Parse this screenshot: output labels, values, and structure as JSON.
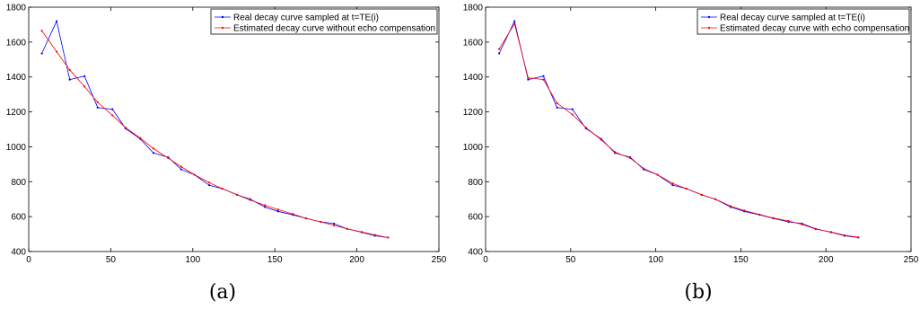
{
  "chart_data": [
    {
      "type": "line",
      "caption": "(a)",
      "xlim": [
        0,
        250
      ],
      "ylim": [
        400,
        1800
      ],
      "xticks": [
        0,
        50,
        100,
        150,
        200,
        250
      ],
      "yticks": [
        400,
        600,
        800,
        1000,
        1200,
        1400,
        1600,
        1800
      ],
      "grid": false,
      "legend_position": "top-right",
      "series": [
        {
          "name": "Real decay curve sampled at t=TE(i)",
          "color": "#0000ff",
          "x": [
            8,
            17,
            25,
            34,
            42,
            51,
            59,
            68,
            76,
            85,
            93,
            101,
            110,
            118,
            127,
            135,
            144,
            152,
            161,
            169,
            178,
            186,
            194,
            203,
            211,
            219
          ],
          "y": [
            1535,
            1720,
            1385,
            1405,
            1225,
            1215,
            1105,
            1045,
            965,
            940,
            870,
            840,
            780,
            760,
            725,
            700,
            655,
            630,
            610,
            590,
            570,
            560,
            530,
            510,
            490,
            480
          ]
        },
        {
          "name": "Estimated decay curve without echo compensation",
          "color": "#ff0000",
          "x": [
            8,
            17,
            25,
            34,
            42,
            51,
            59,
            68,
            76,
            85,
            93,
            101,
            110,
            118,
            127,
            135,
            144,
            152,
            161,
            169,
            178,
            186,
            194,
            203,
            211,
            219
          ],
          "y": [
            1665,
            1545,
            1440,
            1345,
            1255,
            1180,
            1110,
            1050,
            990,
            935,
            885,
            840,
            795,
            760,
            725,
            695,
            665,
            640,
            615,
            590,
            570,
            550,
            530,
            512,
            495,
            480
          ]
        }
      ]
    },
    {
      "type": "line",
      "caption": "(b)",
      "xlim": [
        0,
        250
      ],
      "ylim": [
        400,
        1800
      ],
      "xticks": [
        0,
        50,
        100,
        150,
        200,
        250
      ],
      "yticks": [
        400,
        600,
        800,
        1000,
        1200,
        1400,
        1600,
        1800
      ],
      "grid": false,
      "legend_position": "top-right",
      "series": [
        {
          "name": "Real decay curve sampled at t=TE(i)",
          "color": "#0000ff",
          "x": [
            8,
            17,
            25,
            34,
            42,
            51,
            59,
            68,
            76,
            85,
            93,
            101,
            110,
            118,
            127,
            135,
            144,
            152,
            161,
            169,
            178,
            186,
            194,
            203,
            211,
            219
          ],
          "y": [
            1535,
            1720,
            1385,
            1405,
            1225,
            1215,
            1105,
            1045,
            965,
            940,
            870,
            840,
            780,
            760,
            725,
            700,
            655,
            630,
            610,
            590,
            570,
            560,
            530,
            510,
            490,
            480
          ]
        },
        {
          "name": "Estimated decay curve with echo compensation",
          "color": "#ff0000",
          "x": [
            8,
            17,
            25,
            34,
            42,
            51,
            59,
            68,
            76,
            85,
            93,
            101,
            110,
            118,
            127,
            135,
            144,
            152,
            161,
            169,
            178,
            186,
            194,
            203,
            211,
            219
          ],
          "y": [
            1560,
            1705,
            1395,
            1385,
            1250,
            1185,
            1110,
            1040,
            970,
            935,
            875,
            840,
            790,
            760,
            725,
            700,
            660,
            635,
            612,
            592,
            575,
            555,
            528,
            512,
            493,
            482
          ]
        }
      ]
    }
  ]
}
